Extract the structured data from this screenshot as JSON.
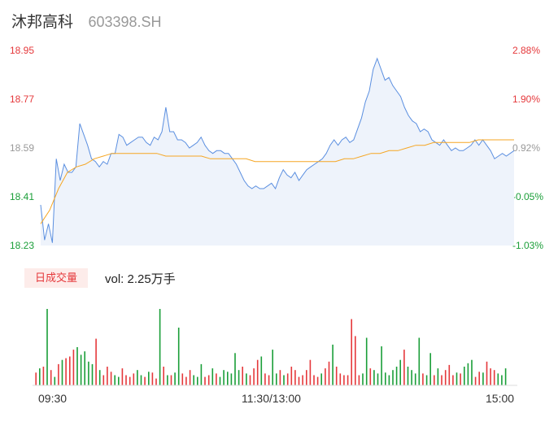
{
  "stock": {
    "name": "沐邦高科",
    "code": "603398.SH"
  },
  "volume_label": "日成交量",
  "volume_text": "vol: 2.25万手",
  "colors": {
    "price_line": "#5b8fe0",
    "avg_line": "#f5a623",
    "up": "#e5383b",
    "down": "#1a9e38",
    "neutral": "#999999"
  },
  "chart_data": {
    "type": "line",
    "y_axis_left": [
      "18.95",
      "18.77",
      "18.59",
      "18.41",
      "18.23"
    ],
    "y_axis_right": [
      "2.88%",
      "1.90%",
      "0.92%",
      "-0.05%",
      "-1.03%"
    ],
    "ylim": [
      18.23,
      18.95
    ],
    "x_labels": [
      "09:30",
      "11:30/13:00",
      "15:00"
    ],
    "series": [
      {
        "values": [
          18.38,
          18.25,
          18.31,
          18.24,
          18.55,
          18.47,
          18.53,
          18.5,
          18.5,
          18.52,
          18.68,
          18.64,
          18.6,
          18.55,
          18.54,
          18.52,
          18.54,
          18.53,
          18.57,
          18.57,
          18.64,
          18.63,
          18.6,
          18.61,
          18.62,
          18.63,
          18.63,
          18.61,
          18.6,
          18.63,
          18.62,
          18.65,
          18.74,
          18.65,
          18.65,
          18.62,
          18.62,
          18.61,
          18.59,
          18.6,
          18.61,
          18.63,
          18.6,
          18.58,
          18.57,
          18.58,
          18.58,
          18.57,
          18.57,
          18.55,
          18.53,
          18.5,
          18.47,
          18.45,
          18.44,
          18.45,
          18.44,
          18.44,
          18.45,
          18.46,
          18.44,
          18.48,
          18.51,
          18.49,
          18.48,
          18.5,
          18.47,
          18.49,
          18.51,
          18.52,
          18.53,
          18.54,
          18.55,
          18.57,
          18.6,
          18.62,
          18.6,
          18.62,
          18.63,
          18.61,
          18.62,
          18.66,
          18.7,
          18.76,
          18.8,
          18.88,
          18.92,
          18.88,
          18.84,
          18.85,
          18.82,
          18.8,
          18.78,
          18.74,
          18.71,
          18.69,
          18.68,
          18.65,
          18.66,
          18.65,
          18.62,
          18.61,
          18.6,
          18.62,
          18.6,
          18.58,
          18.59,
          18.58,
          18.58,
          18.59,
          18.6,
          18.62,
          18.6,
          18.62,
          18.6,
          18.58,
          18.55,
          18.56,
          18.57,
          18.56,
          18.57,
          18.58
        ]
      },
      {
        "values": [
          18.31,
          18.36,
          18.44,
          18.5,
          18.52,
          18.53,
          18.55,
          18.56,
          18.57,
          18.57,
          18.57,
          18.57,
          18.57,
          18.57,
          18.56,
          18.56,
          18.56,
          18.56,
          18.56,
          18.55,
          18.55,
          18.55,
          18.55,
          18.55,
          18.54,
          18.54,
          18.54,
          18.54,
          18.54,
          18.54,
          18.54,
          18.54,
          18.54,
          18.54,
          18.55,
          18.55,
          18.56,
          18.57,
          18.57,
          18.58,
          18.58,
          18.59,
          18.6,
          18.6,
          18.61,
          18.61,
          18.61,
          18.61,
          18.61,
          18.62,
          18.62,
          18.62,
          18.62,
          18.62
        ]
      }
    ],
    "volume": [
      15,
      20,
      22,
      90,
      18,
      10,
      25,
      30,
      32,
      34,
      42,
      45,
      36,
      40,
      28,
      25,
      55,
      18,
      12,
      22,
      16,
      12,
      10,
      20,
      12,
      10,
      14,
      18,
      12,
      10,
      16,
      15,
      8,
      90,
      22,
      12,
      12,
      15,
      68,
      14,
      10,
      18,
      12,
      10,
      25,
      10,
      12,
      20,
      14,
      10,
      18,
      16,
      14,
      38,
      18,
      22,
      14,
      12,
      20,
      30,
      34,
      14,
      12,
      42,
      14,
      18,
      12,
      14,
      22,
      18,
      10,
      12,
      18,
      30,
      12,
      10,
      14,
      20,
      28,
      48,
      22,
      14,
      12,
      12,
      78,
      58,
      12,
      14,
      56,
      20,
      18,
      14,
      46,
      15,
      12,
      18,
      22,
      30,
      42,
      22,
      18,
      14,
      56,
      14,
      12,
      38,
      12,
      20,
      12,
      18,
      24,
      12,
      15,
      14,
      22,
      26,
      30,
      10,
      16,
      15,
      28,
      20,
      18,
      14,
      12,
      20
    ]
  }
}
